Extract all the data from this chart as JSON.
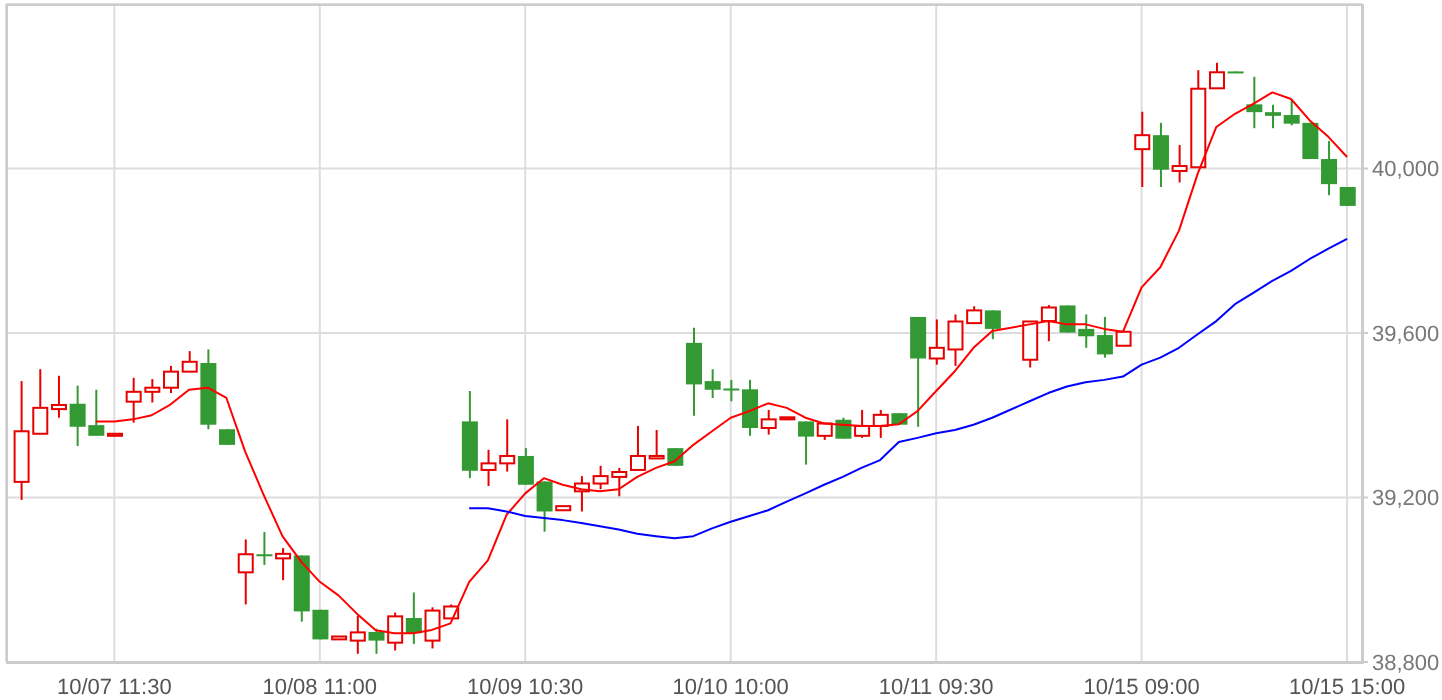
{
  "chart_data": {
    "type": "candlestick",
    "categories": [
      null,
      null,
      null,
      null,
      null,
      "10/07 11:30",
      null,
      null,
      null,
      null,
      null,
      null,
      null,
      null,
      null,
      null,
      "10/08 11:00",
      null,
      null,
      null,
      null,
      null,
      null,
      null,
      null,
      null,
      null,
      "10/09 10:30",
      null,
      null,
      null,
      null,
      null,
      null,
      null,
      null,
      null,
      null,
      "10/10 10:00",
      null,
      null,
      null,
      null,
      null,
      null,
      null,
      null,
      null,
      null,
      "10/11 09:30",
      null,
      null,
      null,
      null,
      null,
      null,
      null,
      null,
      null,
      null,
      "10/15 09:00",
      null,
      null,
      null,
      null,
      null,
      null,
      null,
      null,
      null,
      null,
      "10/15 15:00"
    ],
    "ohlc": [
      [
        39238,
        39483,
        39194,
        39361
      ],
      [
        39355,
        39512,
        39355,
        39418
      ],
      [
        39415,
        39496,
        39394,
        39425
      ],
      [
        39428,
        39472,
        39325,
        39372
      ],
      [
        39376,
        39462,
        39350,
        39350
      ],
      [
        39350,
        39355,
        39350,
        39355
      ],
      [
        39433,
        39491,
        39382,
        39457
      ],
      [
        39457,
        39488,
        39431,
        39467
      ],
      [
        39467,
        39520,
        39454,
        39506
      ],
      [
        39506,
        39556,
        39506,
        39530
      ],
      [
        39527,
        39560,
        39366,
        39377
      ],
      [
        39366,
        39366,
        39328,
        39328
      ],
      [
        39018,
        39098,
        38940,
        39062
      ],
      [
        39062,
        39116,
        39036,
        39058
      ],
      [
        39052,
        39077,
        38999,
        39063
      ],
      [
        39059,
        39059,
        38898,
        38923
      ],
      [
        38927,
        38927,
        38855,
        38855
      ],
      [
        38855,
        38862,
        38855,
        38862
      ],
      [
        38852,
        38912,
        38820,
        38872
      ],
      [
        38873,
        38881,
        38820,
        38852
      ],
      [
        38847,
        38920,
        38828,
        38911
      ],
      [
        38907,
        38969,
        38844,
        38870
      ],
      [
        38852,
        38933,
        38833,
        38925
      ],
      [
        38906,
        38940,
        38906,
        38935
      ],
      [
        39385,
        39459,
        39247,
        39265
      ],
      [
        39267,
        39316,
        39228,
        39283
      ],
      [
        39283,
        39390,
        39263,
        39301
      ],
      [
        39301,
        39320,
        39231,
        39231
      ],
      [
        39239,
        39239,
        39117,
        39166
      ],
      [
        39169,
        39179,
        39169,
        39179
      ],
      [
        39215,
        39252,
        39166,
        39234
      ],
      [
        39234,
        39277,
        39220,
        39252
      ],
      [
        39250,
        39272,
        39203,
        39262
      ],
      [
        39267,
        39374,
        39267,
        39301
      ],
      [
        39295,
        39364,
        39295,
        39301
      ],
      [
        39320,
        39320,
        39277,
        39277
      ],
      [
        39576,
        39613,
        39399,
        39475
      ],
      [
        39483,
        39512,
        39442,
        39462
      ],
      [
        39465,
        39486,
        39434,
        39461
      ],
      [
        39463,
        39486,
        39350,
        39369
      ],
      [
        39369,
        39413,
        39353,
        39390
      ],
      [
        39390,
        39395,
        39390,
        39395
      ],
      [
        39385,
        39385,
        39280,
        39348
      ],
      [
        39350,
        39382,
        39340,
        39380
      ],
      [
        39389,
        39394,
        39343,
        39343
      ],
      [
        39350,
        39413,
        39345,
        39374
      ],
      [
        39374,
        39413,
        39345,
        39401
      ],
      [
        39405,
        39405,
        39377,
        39377
      ],
      [
        39639,
        39639,
        39372,
        39538
      ],
      [
        39538,
        39633,
        39523,
        39564
      ],
      [
        39560,
        39645,
        39520,
        39628
      ],
      [
        39624,
        39665,
        39624,
        39655
      ],
      [
        39655,
        39655,
        39585,
        39610
      ],
      null,
      [
        39535,
        39628,
        39516,
        39628
      ],
      [
        39629,
        39668,
        39580,
        39662
      ],
      [
        39667,
        39667,
        39601,
        39601
      ],
      [
        39610,
        39645,
        39564,
        39592
      ],
      [
        39595,
        39639,
        39540,
        39548
      ],
      [
        39569,
        39603,
        39569,
        39603
      ],
      [
        40047,
        40138,
        39955,
        40081
      ],
      [
        40081,
        40111,
        39955,
        39997
      ],
      [
        39994,
        40057,
        39966,
        40006
      ],
      [
        40003,
        40239,
        40003,
        40194
      ],
      [
        40195,
        40257,
        40195,
        40234
      ],
      [
        40236,
        40236,
        40232,
        40232
      ],
      [
        40156,
        40223,
        40098,
        40137
      ],
      [
        40137,
        40155,
        40098,
        40128
      ],
      [
        40130,
        40166,
        40105,
        40109
      ],
      [
        40111,
        40111,
        40023,
        40023
      ],
      [
        40023,
        40067,
        39935,
        39962
      ],
      [
        39955,
        39955,
        39909,
        39909
      ]
    ],
    "colors": [
      "#e60000",
      "#e60000",
      "#e60000",
      "#339933",
      "#339933",
      "#e60000",
      "#e60000",
      "#e60000",
      "#e60000",
      "#e60000",
      "#339933",
      "#339933",
      "#e60000",
      "#339933",
      "#e60000",
      "#339933",
      "#339933",
      "#e60000",
      "#e60000",
      "#339933",
      "#e60000",
      "#339933",
      "#e60000",
      "#e60000",
      "#339933",
      "#e60000",
      "#e60000",
      "#339933",
      "#339933",
      "#e60000",
      "#e60000",
      "#e60000",
      "#e60000",
      "#e60000",
      "#e60000",
      "#339933",
      "#339933",
      "#339933",
      "#339933",
      "#339933",
      "#e60000",
      "#e60000",
      "#339933",
      "#e60000",
      "#339933",
      "#e60000",
      "#e60000",
      "#339933",
      "#339933",
      "#e60000",
      "#e60000",
      "#e60000",
      "#339933",
      null,
      "#e60000",
      "#e60000",
      "#339933",
      "#339933",
      "#339933",
      "#e60000",
      "#e60000",
      "#339933",
      "#e60000",
      "#e60000",
      "#e60000",
      "#339933",
      "#339933",
      "#339933",
      "#339933",
      "#339933",
      "#339933",
      "#339933"
    ],
    "series": [
      {
        "type": "line",
        "color": "#ff0000",
        "values": [
          null,
          null,
          null,
          null,
          39385,
          39385,
          39390,
          39400,
          39426,
          39462,
          39467,
          39442,
          39312,
          39206,
          39106,
          39044,
          38995,
          38962,
          38917,
          38877,
          38870,
          38870,
          38878,
          38894,
          38995,
          39047,
          39158,
          39210,
          39247,
          39231,
          39220,
          39215,
          39220,
          39250,
          39272,
          39288,
          39328,
          39361,
          39394,
          39410,
          39429,
          39418,
          39394,
          39380,
          39377,
          39374,
          39374,
          39378,
          39410,
          39459,
          39507,
          39564,
          39605,
          null,
          39621,
          39629,
          39621,
          39621,
          39610,
          39603,
          39711,
          39760,
          39849,
          39987,
          40101,
          40133,
          40158,
          40185,
          40169,
          40117,
          40077,
          40028
        ]
      },
      {
        "type": "line",
        "color": "#0000ff",
        "values": [
          null,
          null,
          null,
          null,
          null,
          null,
          null,
          null,
          null,
          null,
          null,
          null,
          null,
          null,
          null,
          null,
          null,
          null,
          null,
          null,
          null,
          null,
          null,
          null,
          39174,
          39174,
          39166,
          39155,
          39150,
          39145,
          39138,
          39130,
          39122,
          39112,
          39106,
          39101,
          39106,
          39125,
          39141,
          39155,
          39169,
          39190,
          39210,
          39231,
          39250,
          39272,
          39291,
          39335,
          39345,
          39356,
          39364,
          39377,
          39394,
          null,
          39434,
          39454,
          39470,
          39480,
          39486,
          39494,
          39523,
          39540,
          39564,
          39597,
          39629,
          39670,
          39698,
          39727,
          39751,
          39780,
          39805,
          39829
        ]
      }
    ],
    "ylim": [
      38800,
      40400
    ],
    "yticks": [
      {
        "value": 38800,
        "label": "38,800"
      },
      {
        "value": 39200,
        "label": "39,200"
      },
      {
        "value": 39600,
        "label": "39,600"
      },
      {
        "value": 40000,
        "label": "40,000"
      }
    ],
    "grid": true
  }
}
